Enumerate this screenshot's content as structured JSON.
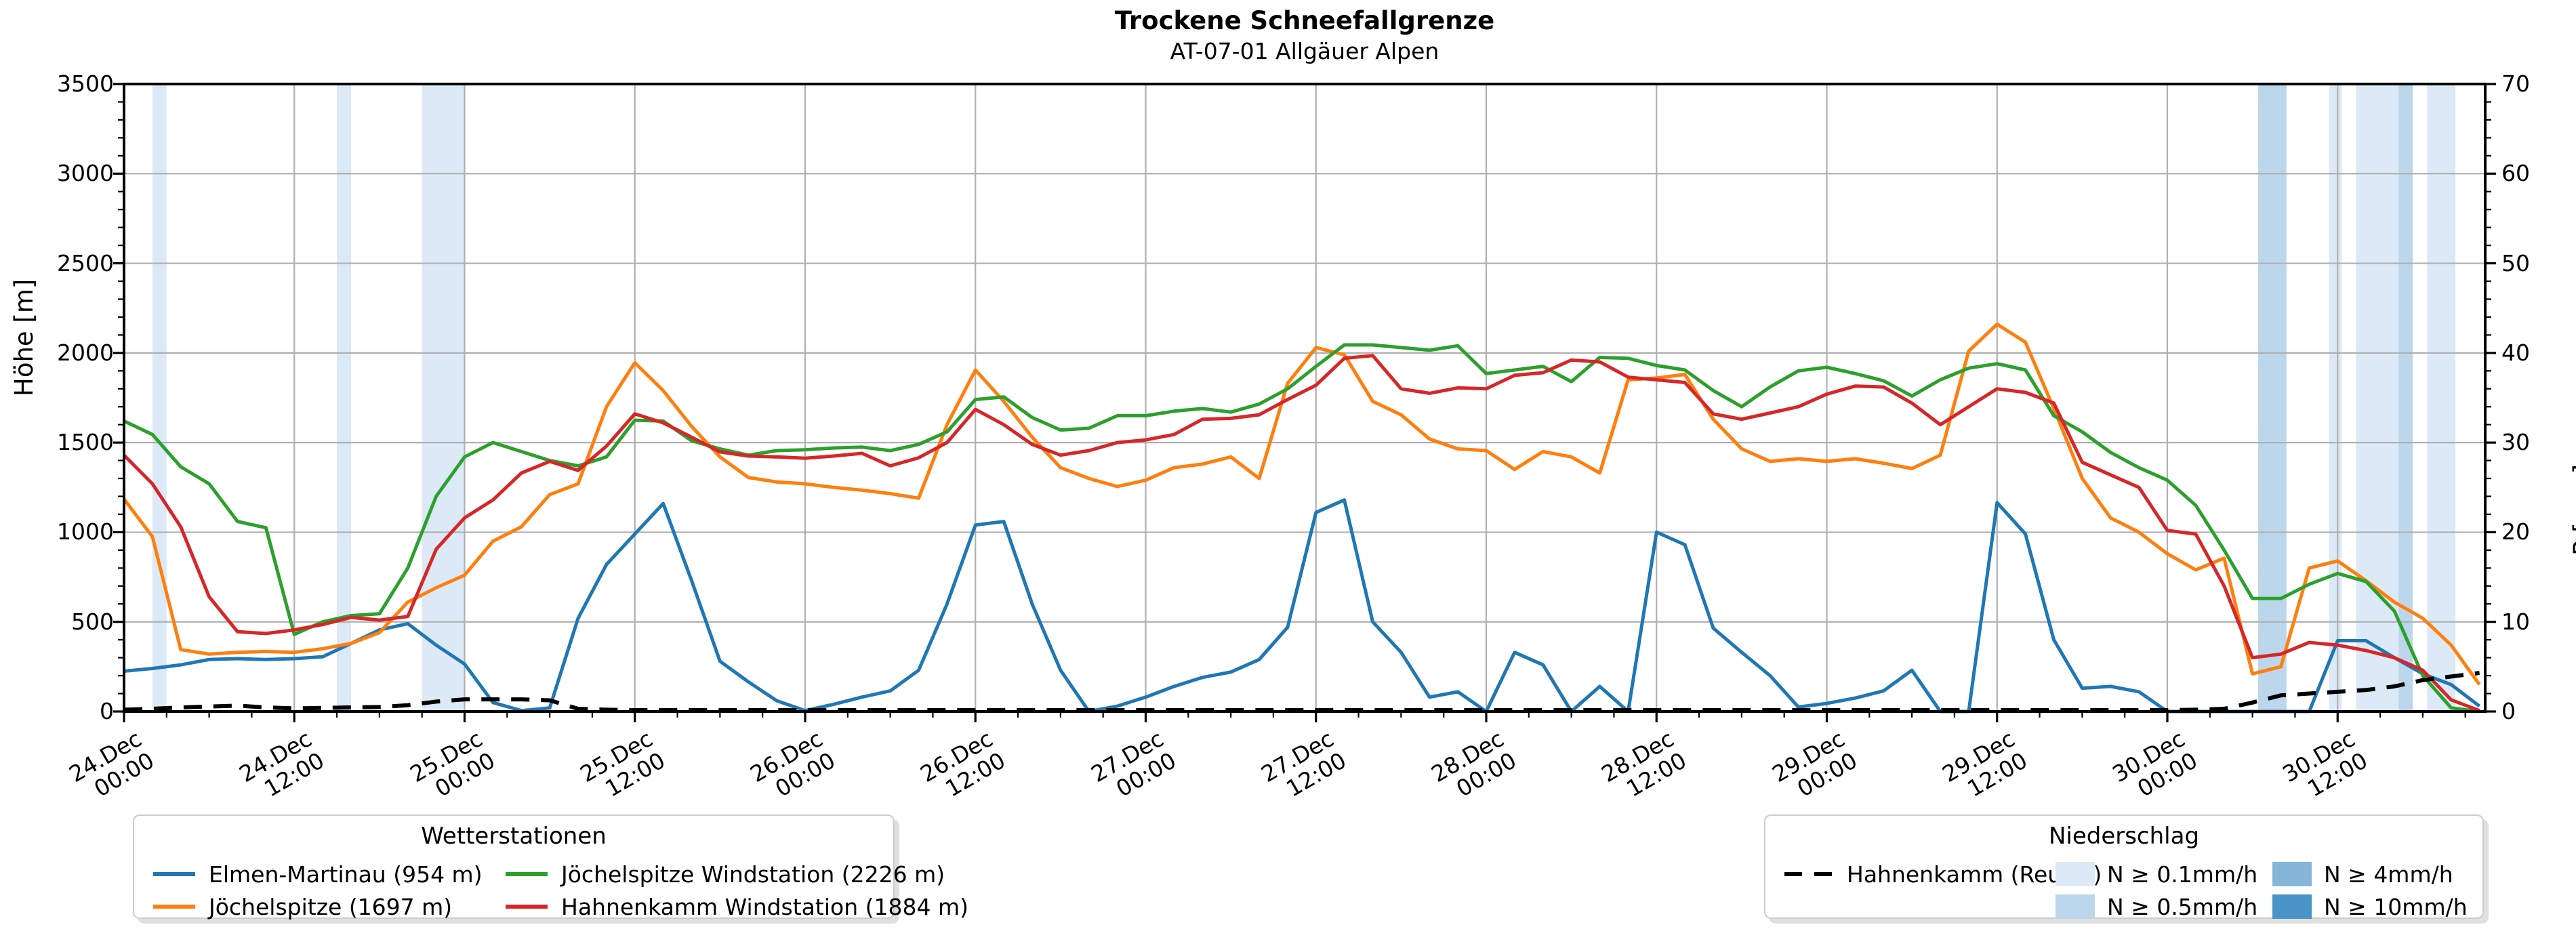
{
  "title": {
    "main": "Trockene Schneefallgrenze",
    "subtitle": "AT-07-01 Allgäuer Alpen"
  },
  "axes": {
    "left_label": "Höhe [m]",
    "right_label": "P [mm]",
    "left_ticks": [
      0,
      500,
      1000,
      1500,
      2000,
      2500,
      3000,
      3500
    ],
    "right_ticks": [
      0,
      10,
      20,
      30,
      40,
      50,
      60,
      70
    ],
    "x_ticks": [
      {
        "date": "24.Dec",
        "time": "00:00",
        "t": 0
      },
      {
        "date": "24.Dec",
        "time": "12:00",
        "t": 12
      },
      {
        "date": "25.Dec",
        "time": "00:00",
        "t": 24
      },
      {
        "date": "25.Dec",
        "time": "12:00",
        "t": 36
      },
      {
        "date": "26.Dec",
        "time": "00:00",
        "t": 48
      },
      {
        "date": "26.Dec",
        "time": "12:00",
        "t": 60
      },
      {
        "date": "27.Dec",
        "time": "00:00",
        "t": 72
      },
      {
        "date": "27.Dec",
        "time": "12:00",
        "t": 84
      },
      {
        "date": "28.Dec",
        "time": "00:00",
        "t": 96
      },
      {
        "date": "28.Dec",
        "time": "12:00",
        "t": 108
      },
      {
        "date": "29.Dec",
        "time": "00:00",
        "t": 120
      },
      {
        "date": "29.Dec",
        "time": "12:00",
        "t": 132
      },
      {
        "date": "30.Dec",
        "time": "00:00",
        "t": 144
      },
      {
        "date": "30.Dec",
        "time": "12:00",
        "t": 156
      }
    ]
  },
  "legend_stations": {
    "title": "Wetterstationen",
    "items": [
      {
        "label": "Elmen-Martinau (954 m)",
        "color": "#1f77b4"
      },
      {
        "label": "Jöchelspitze (1697 m)",
        "color": "#ff7f0e"
      },
      {
        "label": "Jöchelspitze Windstation (2226 m)",
        "color": "#2ca02c"
      },
      {
        "label": "Hahnenkamm Windstation (1884 m)",
        "color": "#d62728"
      }
    ]
  },
  "legend_precip": {
    "title": "Niederschlag",
    "dashed_item": {
      "label": "Hahnenkamm (Reutte)",
      "color": "#000000"
    },
    "classes": [
      {
        "label": "N ≥ 0.1mm/h",
        "key": "0.1",
        "color": "#dce9f6"
      },
      {
        "label": "N ≥ 0.5mm/h",
        "key": "0.5",
        "color": "#bcd7ec"
      },
      {
        "label": "N ≥ 4mm/h",
        "key": "4",
        "color": "#85b5d8"
      },
      {
        "label": "N ≥ 10mm/h",
        "key": "10",
        "color": "#4a94c8"
      }
    ]
  },
  "chart_data": {
    "type": "line",
    "title": "Trockene Schneefallgrenze",
    "subtitle": "AT-07-01 Allgäuer Alpen",
    "xlabel": "",
    "ylabel_left": "Höhe [m]",
    "ylabel_right": "P [mm]",
    "x_unit": "hours since 24.Dec 00:00",
    "xlim": [
      0,
      166.4
    ],
    "ylim_left": [
      0,
      3500
    ],
    "ylim_right": [
      0,
      70
    ],
    "grid": true,
    "grid_color": "#b0b0b0",
    "x_hours": [
      0,
      2,
      4,
      6,
      8,
      10,
      12,
      14,
      16,
      18,
      20,
      22,
      24,
      26,
      28,
      30,
      32,
      34,
      36,
      38,
      40,
      42,
      44,
      46,
      48,
      50,
      52,
      54,
      56,
      58,
      60,
      62,
      64,
      66,
      68,
      70,
      72,
      74,
      76,
      78,
      80,
      82,
      84,
      86,
      88,
      90,
      92,
      94,
      96,
      98,
      100,
      102,
      104,
      106,
      108,
      110,
      112,
      114,
      116,
      118,
      120,
      122,
      124,
      126,
      128,
      130,
      132,
      134,
      136,
      138,
      140,
      142,
      144,
      146,
      148,
      150,
      152,
      154,
      156,
      158,
      160,
      162,
      164,
      166
    ],
    "series": [
      {
        "name": "Elmen-Martinau (954 m)",
        "color": "#1f77b4",
        "style": "solid",
        "axis": "left",
        "values": [
          225,
          240,
          260,
          290,
          295,
          290,
          295,
          305,
          380,
          455,
          490,
          370,
          265,
          50,
          5,
          20,
          520,
          820,
          990,
          1160,
          730,
          280,
          165,
          60,
          5,
          40,
          80,
          115,
          230,
          600,
          1040,
          1060,
          600,
          230,
          0,
          30,
          80,
          140,
          190,
          220,
          290,
          470,
          1110,
          1180,
          500,
          330,
          80,
          110,
          0,
          330,
          260,
          0,
          140,
          0,
          1000,
          930,
          465,
          330,
          200,
          25,
          45,
          75,
          115,
          230,
          0,
          0,
          1165,
          990,
          400,
          130,
          140,
          110,
          0,
          0,
          0,
          0,
          0,
          0,
          395,
          395,
          300,
          210,
          150,
          30
        ]
      },
      {
        "name": "Jöchelspitze (1697 m)",
        "color": "#ff7f0e",
        "style": "solid",
        "axis": "left",
        "values": [
          1185,
          975,
          345,
          320,
          330,
          335,
          330,
          350,
          380,
          440,
          610,
          690,
          760,
          950,
          1030,
          1210,
          1270,
          1700,
          1945,
          1790,
          1590,
          1420,
          1305,
          1280,
          1270,
          1250,
          1235,
          1215,
          1190,
          1600,
          1905,
          1730,
          1530,
          1360,
          1300,
          1255,
          1290,
          1360,
          1380,
          1420,
          1300,
          1830,
          2030,
          1990,
          1730,
          1655,
          1520,
          1465,
          1455,
          1350,
          1450,
          1420,
          1330,
          1850,
          1860,
          1880,
          1630,
          1465,
          1395,
          1410,
          1395,
          1410,
          1385,
          1355,
          1430,
          2010,
          2160,
          2060,
          1690,
          1300,
          1080,
          1000,
          880,
          790,
          855,
          210,
          250,
          800,
          840,
          730,
          610,
          520,
          370,
          150
        ]
      },
      {
        "name": "Jöchelspitze Windstation (2226 m)",
        "color": "#2ca02c",
        "style": "solid",
        "axis": "left",
        "values": [
          1620,
          1545,
          1365,
          1270,
          1060,
          1025,
          430,
          500,
          535,
          545,
          800,
          1200,
          1420,
          1500,
          1450,
          1400,
          1370,
          1420,
          1625,
          1620,
          1510,
          1465,
          1430,
          1455,
          1460,
          1470,
          1475,
          1455,
          1490,
          1560,
          1740,
          1755,
          1640,
          1570,
          1580,
          1650,
          1650,
          1675,
          1690,
          1670,
          1715,
          1800,
          1925,
          2045,
          2045,
          2030,
          2015,
          2040,
          1885,
          1905,
          1925,
          1840,
          1975,
          1970,
          1930,
          1905,
          1790,
          1700,
          1810,
          1900,
          1920,
          1885,
          1845,
          1760,
          1850,
          1915,
          1940,
          1905,
          1650,
          1560,
          1445,
          1360,
          1290,
          1150,
          900,
          630,
          630,
          710,
          770,
          725,
          560,
          200,
          20,
          0
        ]
      },
      {
        "name": "Hahnenkamm Windstation (1884 m)",
        "color": "#d62728",
        "style": "solid",
        "axis": "left",
        "values": [
          1430,
          1270,
          1030,
          640,
          445,
          435,
          455,
          485,
          525,
          510,
          530,
          905,
          1080,
          1180,
          1330,
          1395,
          1345,
          1480,
          1660,
          1610,
          1530,
          1448,
          1425,
          1420,
          1413,
          1425,
          1440,
          1370,
          1415,
          1500,
          1685,
          1600,
          1490,
          1430,
          1455,
          1500,
          1515,
          1545,
          1630,
          1635,
          1655,
          1740,
          1820,
          1970,
          1985,
          1800,
          1775,
          1805,
          1800,
          1875,
          1890,
          1960,
          1950,
          1865,
          1850,
          1835,
          1660,
          1630,
          1665,
          1700,
          1770,
          1815,
          1810,
          1720,
          1600,
          1700,
          1800,
          1780,
          1720,
          1390,
          1320,
          1250,
          1010,
          990,
          700,
          300,
          320,
          385,
          370,
          340,
          300,
          230,
          65,
          5
        ]
      },
      {
        "name": "Hahnenkamm (Reutte)",
        "color": "#000000",
        "style": "dashed",
        "axis": "right",
        "values": [
          0.2,
          0.3,
          0.45,
          0.55,
          0.65,
          0.45,
          0.35,
          0.4,
          0.45,
          0.5,
          0.7,
          1.1,
          1.35,
          1.35,
          1.35,
          1.25,
          0.3,
          0.2,
          0.15,
          0.15,
          0.15,
          0.15,
          0.15,
          0.15,
          0.15,
          0.15,
          0.15,
          0.15,
          0.15,
          0.15,
          0.15,
          0.15,
          0.15,
          0.15,
          0.15,
          0.15,
          0.15,
          0.15,
          0.15,
          0.15,
          0.15,
          0.15,
          0.15,
          0.15,
          0.15,
          0.15,
          0.15,
          0.15,
          0.15,
          0.15,
          0.15,
          0.15,
          0.15,
          0.15,
          0.15,
          0.15,
          0.15,
          0.15,
          0.15,
          0.15,
          0.15,
          0.15,
          0.15,
          0.15,
          0.15,
          0.15,
          0.15,
          0.15,
          0.15,
          0.15,
          0.15,
          0.15,
          0.15,
          0.2,
          0.3,
          1.0,
          1.8,
          2.0,
          2.2,
          2.4,
          2.8,
          3.5,
          3.9,
          4.3
        ]
      }
    ],
    "precip_bands": [
      {
        "t_start": 2.0,
        "t_end": 3.0,
        "class": "0.1"
      },
      {
        "t_start": 15.0,
        "t_end": 16.0,
        "class": "0.1"
      },
      {
        "t_start": 21.0,
        "t_end": 24.0,
        "class": "0.1"
      },
      {
        "t_start": 150.4,
        "t_end": 152.4,
        "class": "0.5"
      },
      {
        "t_start": 155.4,
        "t_end": 156.3,
        "class": "0.1"
      },
      {
        "t_start": 157.3,
        "t_end": 160.3,
        "class": "0.1"
      },
      {
        "t_start": 160.3,
        "t_end": 161.3,
        "class": "0.5"
      },
      {
        "t_start": 162.3,
        "t_end": 164.3,
        "class": "0.1"
      }
    ],
    "band_colors": {
      "0.1": "#dce9f6",
      "0.5": "#bcd7ec",
      "4": "#85b5d8",
      "10": "#4a94c8"
    },
    "legend_left_position": "bottom-left",
    "legend_right_position": "bottom-right"
  }
}
